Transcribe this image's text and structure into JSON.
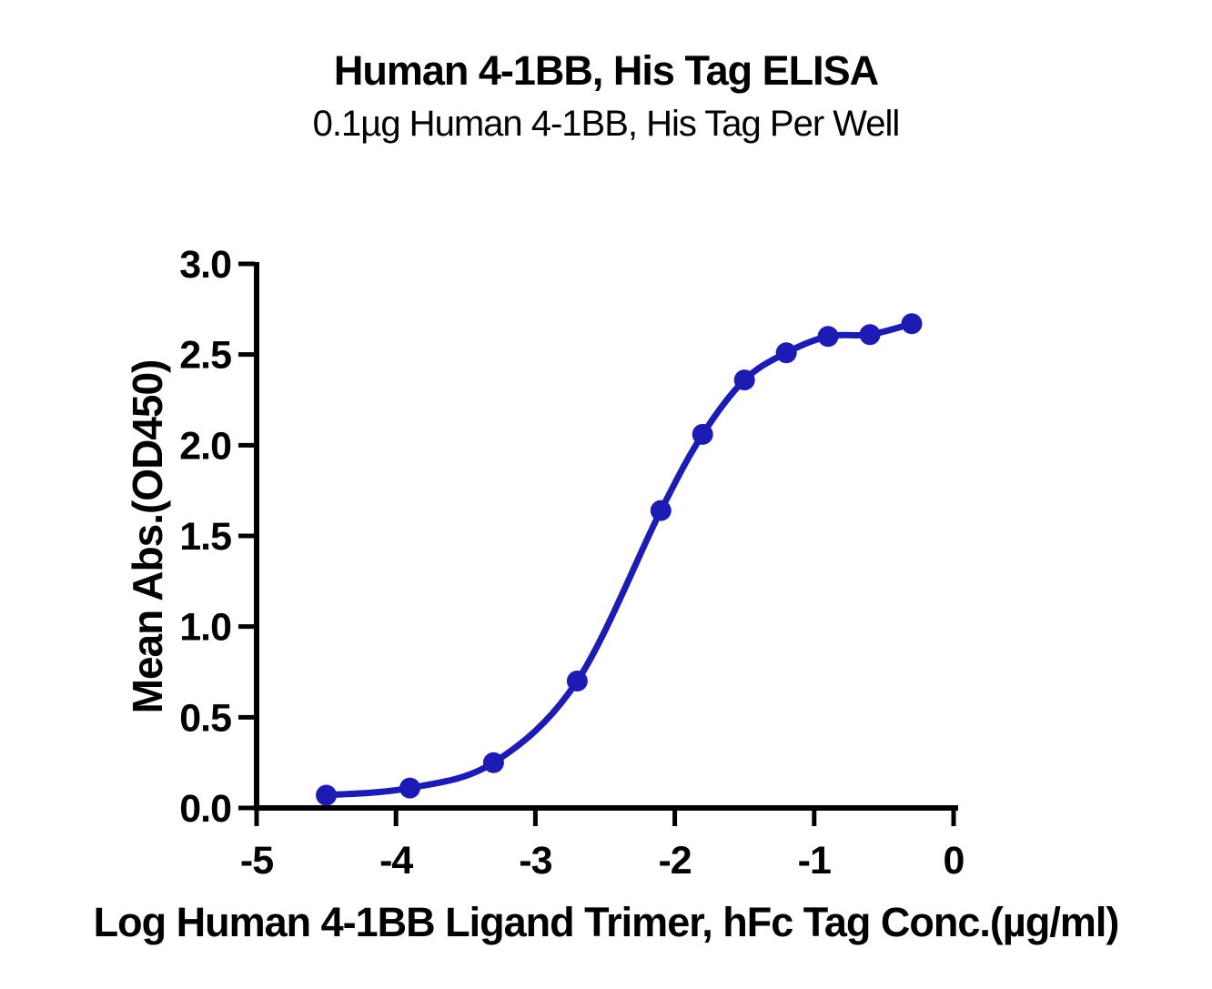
{
  "chart": {
    "title": "Human 4-1BB, His Tag ELISA",
    "subtitle": "0.1µg Human 4-1BB, His Tag Per Well",
    "ylabel": "Mean Abs.(OD450)",
    "xlabel": "Log Human 4-1BB Ligand Trimer, hFc Tag Conc.(µg/ml)"
  },
  "chart_data": {
    "type": "line",
    "marker": "circle",
    "title": "Human 4-1BB, His Tag ELISA",
    "subtitle": "0.1µg Human 4-1BB, His Tag Per Well",
    "xlabel": "Log Human 4-1BB Ligand Trimer, hFc Tag Conc.(µg/ml)",
    "ylabel": "Mean Abs.(OD450)",
    "x": [
      -4.5,
      -3.9,
      -3.3,
      -2.7,
      -2.1,
      -1.8,
      -1.5,
      -1.2,
      -0.9,
      -0.6,
      -0.3
    ],
    "y": [
      0.07,
      0.11,
      0.25,
      0.7,
      1.64,
      2.06,
      2.36,
      2.51,
      2.6,
      2.61,
      2.67
    ],
    "series_name": "Human 4-1BB Ligand Trimer, hFc Tag",
    "xlim": [
      -5,
      0
    ],
    "ylim": [
      0,
      3
    ],
    "xticks": {
      "values": [
        -5,
        -4,
        -3,
        -2,
        -1,
        0
      ],
      "labels": [
        "-5",
        "-4",
        "-3",
        "-2",
        "-1",
        "0"
      ]
    },
    "yticks": {
      "values": [
        0,
        0.5,
        1,
        1.5,
        2,
        2.5,
        3
      ],
      "labels": [
        "0.0",
        "0.5",
        "1.0",
        "1.5",
        "2.0",
        "2.5",
        "3.0"
      ]
    },
    "grid": false,
    "legend": "none",
    "colors": {
      "curve": "#1C1CB4",
      "marker": "#1C1CB4",
      "axis": "#000000",
      "text": "#000000",
      "background": "#FFFFFF"
    }
  }
}
